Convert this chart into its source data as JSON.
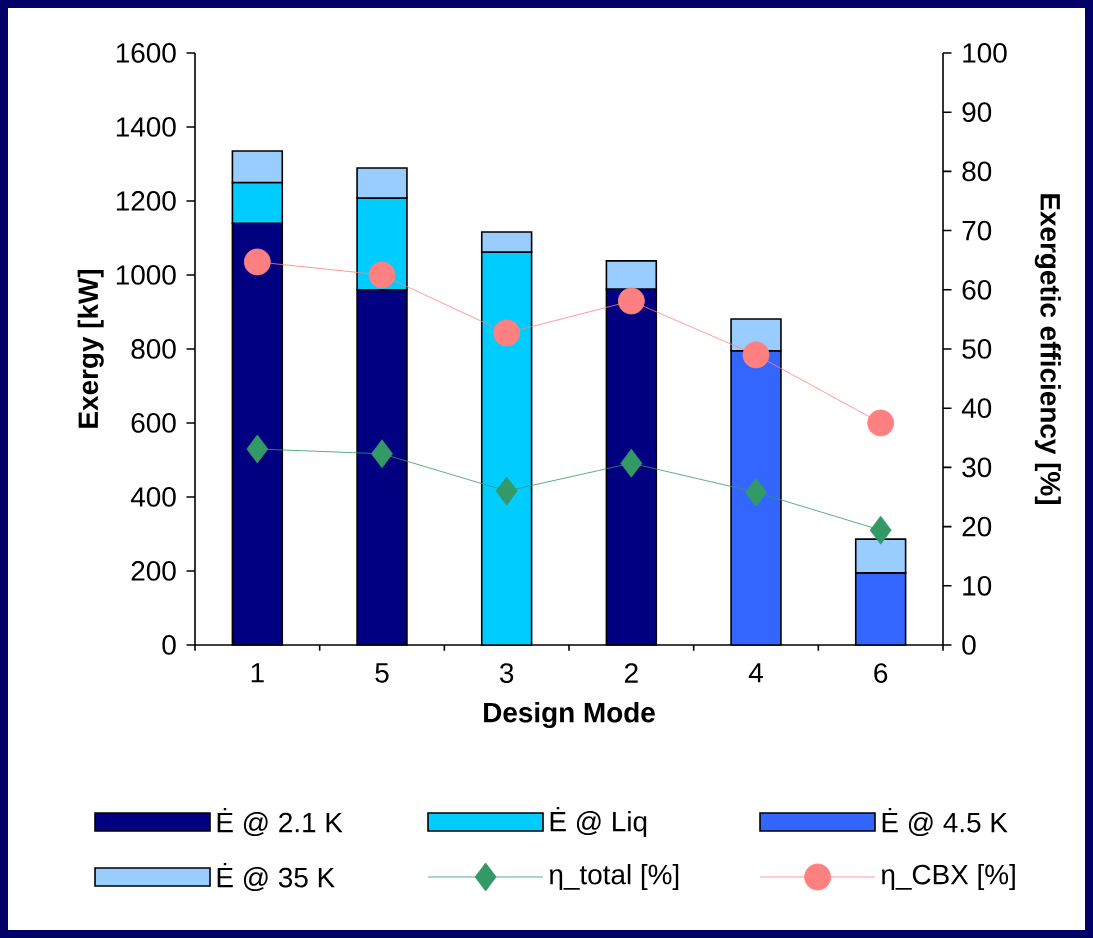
{
  "chart_data": {
    "type": "bar",
    "stacked": true,
    "xlabel": "Design Mode",
    "ylabel": "Exergy [kW]",
    "y2label": "Exergetic efficiency [%]",
    "categories": [
      "1",
      "5",
      "3",
      "2",
      "4",
      "6"
    ],
    "series": [
      {
        "name": "Ė @ 2.1 K",
        "color": "#000080",
        "values": [
          1140,
          960,
          null,
          962,
          null,
          null
        ]
      },
      {
        "name": "Ė @ Liq",
        "color": "#00ccff",
        "values": [
          110,
          248,
          1062,
          null,
          null,
          null
        ]
      },
      {
        "name": "Ė @ 4.5 K",
        "color": "#3366ff",
        "values": [
          null,
          null,
          null,
          null,
          795,
          195
        ]
      },
      {
        "name": "Ė @ 35 K",
        "color": "#99ccff",
        "values": [
          85,
          81,
          54,
          76,
          86,
          91
        ]
      },
      {
        "name": "η_total [%]",
        "type": "line",
        "axis": "y2",
        "color": "#339966",
        "marker": "diamond",
        "values": [
          33.1,
          32.3,
          26,
          30.7,
          25.8,
          19.4
        ]
      },
      {
        "name": "η_CBX [%]",
        "type": "line",
        "axis": "y2",
        "color": "#ff8080",
        "marker": "circle",
        "values": [
          64.7,
          62.5,
          52.7,
          58.1,
          49,
          37.5
        ]
      }
    ],
    "ylim": [
      0,
      1600
    ],
    "yticks": [
      0,
      200,
      400,
      600,
      800,
      1000,
      1200,
      1400,
      1600
    ],
    "y2lim": [
      0,
      100
    ],
    "y2ticks": [
      0,
      10,
      20,
      30,
      40,
      50,
      60,
      70,
      80,
      90,
      100
    ],
    "legend": "bottom",
    "grid": false
  }
}
